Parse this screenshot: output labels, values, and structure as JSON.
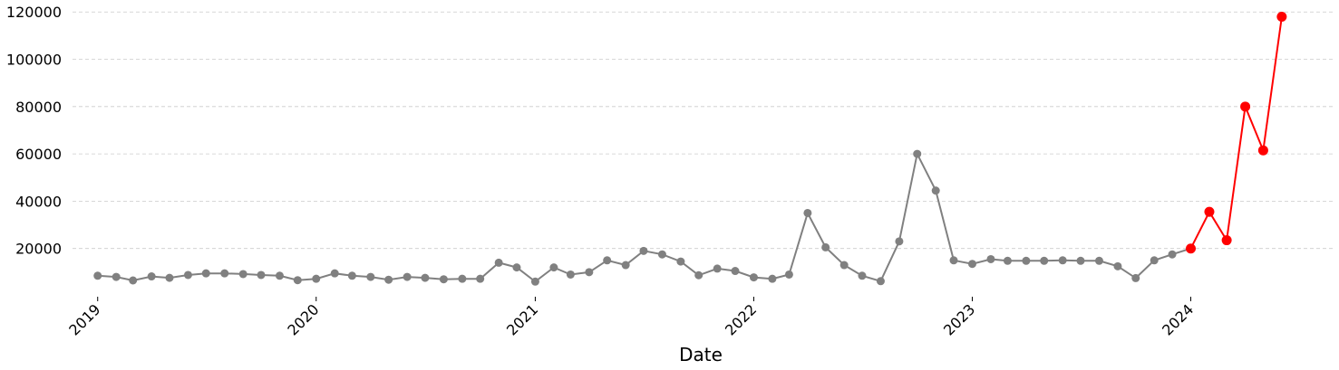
{
  "chart_data": {
    "type": "line",
    "xlabel": "Date",
    "ylabel": "",
    "title": "",
    "grid": "horizontal dashed",
    "legend": "none",
    "ylim": [
      0,
      122000
    ],
    "xlim": [
      "2018-11-20",
      "2024-08-25"
    ],
    "x_ticks": [
      "2019",
      "2020",
      "2021",
      "2022",
      "2023",
      "2024"
    ],
    "y_ticks": [
      20000,
      40000,
      60000,
      80000,
      100000,
      120000
    ],
    "colors": {
      "historical": "#808080",
      "recent": "#ff0000",
      "grid": "#cccccc"
    },
    "series": [
      {
        "style": "historical",
        "x": [
          "2019-01",
          "2019-02",
          "2019-03",
          "2019-04",
          "2019-05",
          "2019-06",
          "2019-07",
          "2019-08",
          "2019-09",
          "2019-10",
          "2019-11",
          "2019-12",
          "2020-01",
          "2020-02",
          "2020-03",
          "2020-04",
          "2020-05",
          "2020-06",
          "2020-07",
          "2020-08",
          "2020-09",
          "2020-10",
          "2020-11",
          "2020-12",
          "2021-01",
          "2021-02",
          "2021-03",
          "2021-04",
          "2021-05",
          "2021-06",
          "2021-07",
          "2021-08",
          "2021-09",
          "2021-10",
          "2021-11",
          "2021-12",
          "2022-01",
          "2022-02",
          "2022-03",
          "2022-04",
          "2022-05",
          "2022-06",
          "2022-07",
          "2022-08",
          "2022-09",
          "2022-10",
          "2022-11",
          "2022-12",
          "2023-01",
          "2023-02",
          "2023-03",
          "2023-04",
          "2023-05",
          "2023-06",
          "2023-07",
          "2023-08",
          "2023-09",
          "2023-10",
          "2023-11",
          "2023-12",
          "2024-01"
        ],
        "values": [
          8500,
          8000,
          6500,
          8200,
          7600,
          8800,
          9500,
          9500,
          9200,
          8800,
          8500,
          6600,
          7200,
          9500,
          8500,
          8000,
          6800,
          8000,
          7600,
          7000,
          7200,
          7200,
          14000,
          12000,
          6000,
          12000,
          9000,
          10000,
          15000,
          13000,
          19000,
          17500,
          14500,
          8700,
          11500,
          10500,
          7800,
          7200,
          9000,
          35000,
          20500,
          13000,
          8500,
          6200,
          23000,
          60000,
          44500,
          15000,
          13500,
          15500,
          14800,
          14800,
          14800,
          15000,
          14800,
          14800,
          12500,
          7500,
          15000,
          17500,
          20000
        ]
      },
      {
        "style": "recent",
        "x": [
          "2024-01",
          "2024-02",
          "2024-03",
          "2024-04",
          "2024-05",
          "2024-06"
        ],
        "values": [
          20000,
          35500,
          23500,
          80000,
          61500,
          118000
        ]
      }
    ]
  }
}
